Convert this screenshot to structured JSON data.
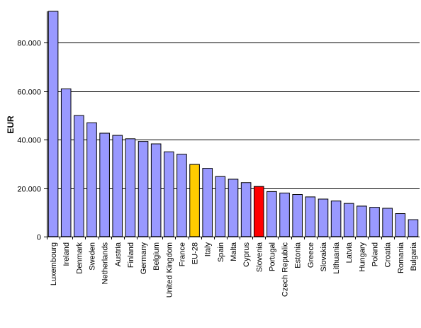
{
  "chart_data": {
    "type": "bar",
    "title": "",
    "xlabel": "",
    "ylabel": "EUR",
    "ylim": [
      0,
      93000
    ],
    "yticks": [
      0,
      20000,
      40000,
      60000,
      80000
    ],
    "ytick_labels": [
      "0",
      "20.000",
      "40.000",
      "60.000",
      "80.000"
    ],
    "grid": true,
    "legend": "none",
    "categories": [
      "Luxembourg",
      "Ireland",
      "Denmark",
      "Sweden",
      "Netherlands",
      "Austria",
      "Finland",
      "Germany",
      "Belgium",
      "United Kingdom",
      "France",
      "EU-28",
      "Italy",
      "Spain",
      "Malta",
      "Cyprus",
      "Slovenia",
      "Portugal",
      "Czech Republic",
      "Estonia",
      "Greece",
      "Slovakia",
      "Lithuania",
      "Latvia",
      "Hungary",
      "Poland",
      "Croatia",
      "Romania",
      "Bulgaria"
    ],
    "values": [
      93000,
      61000,
      50000,
      47000,
      42700,
      41800,
      40400,
      39300,
      38300,
      35000,
      34000,
      29800,
      28200,
      24800,
      23700,
      22300,
      20700,
      18600,
      18000,
      17400,
      16400,
      15500,
      14700,
      13700,
      12600,
      12100,
      11700,
      9500,
      7000
    ],
    "colors": {
      "default": "#9999ff",
      "highlights": {
        "EU-28": "#ffcc00",
        "Slovenia": "#ff0000"
      },
      "axis": "#000000",
      "grid": "#000000"
    }
  }
}
